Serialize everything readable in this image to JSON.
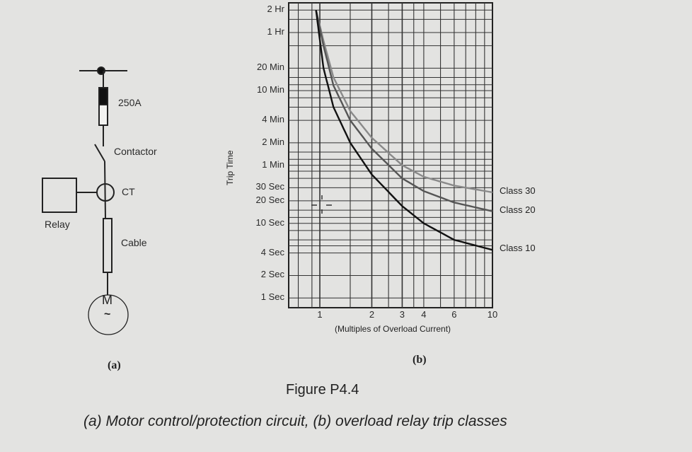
{
  "diagram_a": {
    "fuse_label": "250A",
    "contactor_label": "Contactor",
    "ct_label": "CT",
    "relay_label": "Relay",
    "cable_label": "Cable",
    "motor_label": "M",
    "motor_ac_symbol": "~",
    "panel_label": "(a)"
  },
  "panel_b_label": "(b)",
  "figure": {
    "title": "Figure P4.4",
    "caption": "(a) Motor control/protection circuit, (b) overload relay trip classes"
  },
  "chart_data": {
    "type": "line",
    "title": "",
    "xlabel": "(Multiples of Overload Current)",
    "ylabel": "Trip Time",
    "x_scale": "log",
    "y_scale": "log",
    "xlim": [
      0.66,
      10
    ],
    "ylim": [
      0.74,
      9000
    ],
    "grid": true,
    "x_ticks": [
      {
        "value": 1,
        "label": "1"
      },
      {
        "value": 2,
        "label": "2"
      },
      {
        "value": 3,
        "label": "3"
      },
      {
        "value": 4,
        "label": "4"
      },
      {
        "value": 6,
        "label": "6"
      },
      {
        "value": 10,
        "label": "10"
      }
    ],
    "y_ticks": [
      {
        "value": 7200,
        "label": "2 Hr"
      },
      {
        "value": 3600,
        "label": "1 Hr"
      },
      {
        "value": 1200,
        "label": "20 Min"
      },
      {
        "value": 600,
        "label": "10 Min"
      },
      {
        "value": 240,
        "label": "4 Min"
      },
      {
        "value": 120,
        "label": "2 Min"
      },
      {
        "value": 60,
        "label": "1 Min"
      },
      {
        "value": 30,
        "label": "30 Sec"
      },
      {
        "value": 20,
        "label": "20 Sec"
      },
      {
        "value": 10,
        "label": "10 Sec"
      },
      {
        "value": 4,
        "label": "4 Sec"
      },
      {
        "value": 2,
        "label": "2 Sec"
      },
      {
        "value": 1,
        "label": "1 Sec"
      }
    ],
    "series": [
      {
        "name": "Class 30",
        "color": "#8a8a8a",
        "x": [
          0.95,
          1.05,
          1.2,
          1.5,
          2,
          3,
          4,
          6,
          10
        ],
        "y": [
          7200,
          2800,
          900,
          320,
          140,
          60,
          42,
          32,
          26
        ]
      },
      {
        "name": "Class 20",
        "color": "#555555",
        "x": [
          0.95,
          1.05,
          1.2,
          1.5,
          2,
          3,
          4,
          6,
          10
        ],
        "y": [
          7200,
          2400,
          700,
          240,
          100,
          40,
          27,
          19,
          14.5
        ]
      },
      {
        "name": "Class 10",
        "color": "#111111",
        "x": [
          0.95,
          1.05,
          1.2,
          1.5,
          2,
          3,
          4,
          6,
          10
        ],
        "y": [
          7200,
          1200,
          360,
          120,
          45,
          17,
          10,
          6,
          4.4
        ]
      }
    ]
  }
}
